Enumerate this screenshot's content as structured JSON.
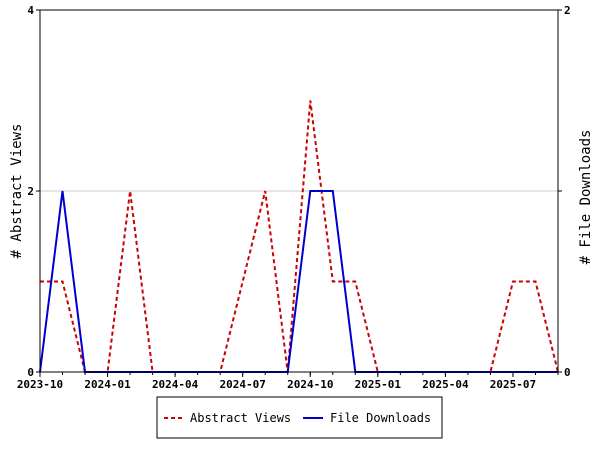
{
  "chart_data": {
    "type": "line",
    "title": "",
    "x_tick_labels": [
      "2023-10",
      "2024-01",
      "2024-04",
      "2024-07",
      "2024-10",
      "2025-01",
      "2025-04",
      "2025-07"
    ],
    "x": [
      "2023-10",
      "2023-11",
      "2023-12",
      "2024-01",
      "2024-02",
      "2024-03",
      "2024-04",
      "2024-05",
      "2024-06",
      "2024-07",
      "2024-08",
      "2024-09",
      "2024-10",
      "2024-11",
      "2024-12",
      "2025-01",
      "2025-02",
      "2025-03",
      "2025-04",
      "2025-05",
      "2025-06",
      "2025-07",
      "2025-08",
      "2025-09"
    ],
    "y_left": {
      "label": "# Abstract Views",
      "range": [
        0,
        4
      ],
      "ticks": [
        "0",
        "2",
        "4"
      ]
    },
    "y_right": {
      "label": "# File Downloads",
      "range": [
        0,
        2
      ],
      "ticks": [
        "0",
        "1",
        "2"
      ]
    },
    "legend_position": "bottom-center",
    "series": [
      {
        "name": "Abstract Views",
        "axis": "left",
        "color": "#cc0000",
        "style": "dashed",
        "values": [
          1,
          1,
          0,
          0,
          2,
          0,
          0,
          0,
          0,
          1,
          2,
          0,
          3,
          1,
          1,
          0,
          0,
          0,
          0,
          0,
          0,
          1,
          1,
          0
        ]
      },
      {
        "name": "File Downloads",
        "axis": "right",
        "color": "#0000cc",
        "style": "solid",
        "values": [
          0,
          1,
          0,
          0,
          0,
          0,
          0,
          0,
          0,
          0,
          0,
          0,
          1,
          1,
          0,
          0,
          0,
          0,
          0,
          0,
          0,
          0,
          0,
          0
        ]
      }
    ]
  }
}
